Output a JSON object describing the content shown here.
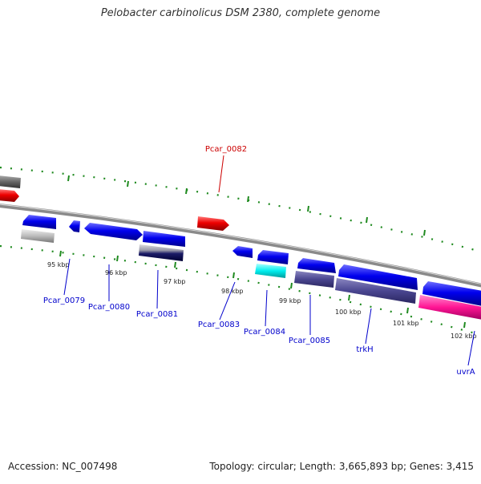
{
  "title": "Pelobacter carbinolicus DSM 2380, complete genome",
  "footer": {
    "accession": "Accession: NC_007498",
    "summary": "Topology: circular; Length: 3,665,893 bp; Genes: 3,415"
  },
  "colors": {
    "backbone": "#8a8a8a",
    "tick": "#1f8a1f",
    "forward_label": "#0000cc",
    "highlight_label": "#cc0000"
  },
  "scale_labels": [
    "95 kbp",
    "96 kbp",
    "97 kbp",
    "98 kbp",
    "99 kbp",
    "100 kbp",
    "101 kbp",
    "102 kbp"
  ],
  "gene_labels": [
    {
      "name": "Pcar_0082",
      "color": "#cc0000"
    },
    {
      "name": "Pcar_0079",
      "color": "#0000cc"
    },
    {
      "name": "Pcar_0080",
      "color": "#0000cc"
    },
    {
      "name": "Pcar_0081",
      "color": "#0000cc"
    },
    {
      "name": "Pcar_0083",
      "color": "#0000cc"
    },
    {
      "name": "Pcar_0084",
      "color": "#0000cc"
    },
    {
      "name": "Pcar_0085",
      "color": "#0000cc"
    },
    {
      "name": "trkH",
      "color": "#0000cc"
    },
    {
      "name": "uvrA",
      "color": "#0000cc"
    }
  ]
}
